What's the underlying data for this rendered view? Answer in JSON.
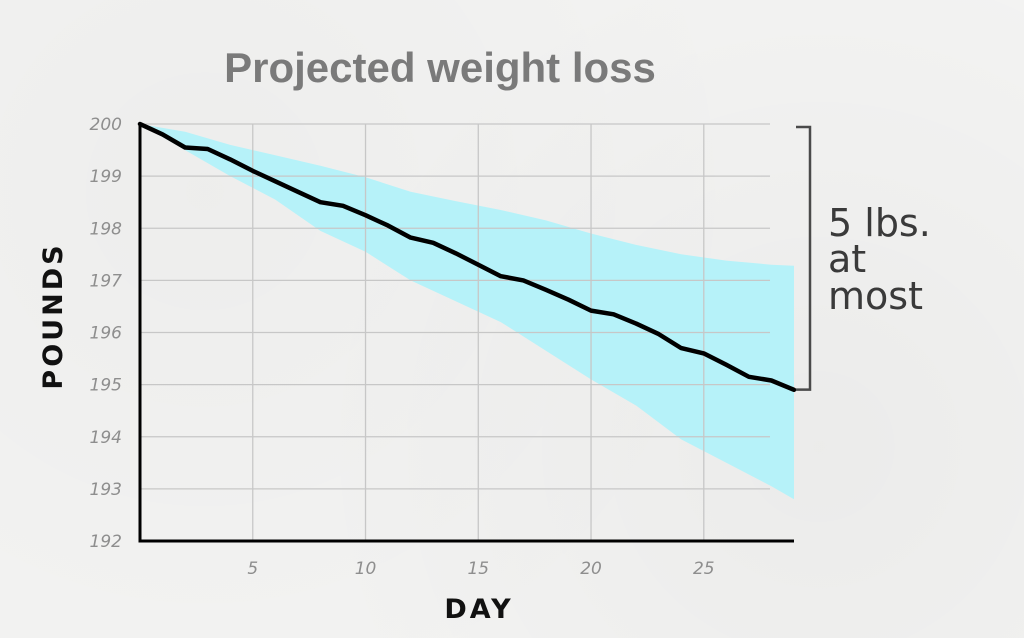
{
  "chart_data": {
    "type": "line",
    "title": "Projected weight loss",
    "xlabel": "DAY",
    "ylabel": "POUNDS",
    "xlim": [
      0,
      29
    ],
    "ylim": [
      192,
      200
    ],
    "x_ticks": [
      5,
      10,
      15,
      20,
      25
    ],
    "y_ticks": [
      192,
      193,
      194,
      195,
      196,
      197,
      198,
      199,
      200
    ],
    "grid": true,
    "series": [
      {
        "x": [
          0,
          1,
          2,
          3,
          4,
          5,
          6,
          7,
          8,
          9,
          10,
          11,
          12,
          13,
          14,
          15,
          16,
          17,
          18,
          19,
          20,
          21,
          22,
          23,
          24,
          25,
          26,
          27,
          28,
          29
        ],
        "values": [
          200,
          199.8,
          199.55,
          199.52,
          199.32,
          199.1,
          198.9,
          198.7,
          198.5,
          198.43,
          198.25,
          198.05,
          197.82,
          197.72,
          197.52,
          197.3,
          197.08,
          197.0,
          196.82,
          196.63,
          196.42,
          196.35,
          196.17,
          195.97,
          195.7,
          195.6,
          195.38,
          195.15,
          195.08,
          194.9
        ],
        "color": "#000000"
      }
    ],
    "band": {
      "x": [
        0,
        2,
        4,
        6,
        8,
        10,
        12,
        14,
        16,
        18,
        20,
        22,
        24,
        26,
        28,
        29
      ],
      "upper": [
        200,
        199.85,
        199.6,
        199.4,
        199.2,
        198.98,
        198.7,
        198.52,
        198.35,
        198.15,
        197.9,
        197.68,
        197.5,
        197.38,
        197.3,
        197.28
      ],
      "lower": [
        200,
        199.5,
        199.0,
        198.55,
        197.95,
        197.55,
        197.0,
        196.6,
        196.2,
        195.65,
        195.1,
        194.6,
        193.95,
        193.5,
        193.05,
        192.8
      ],
      "color": "#b6f2f9"
    },
    "annotation": {
      "lines": [
        "5 lbs.",
        "at",
        "most"
      ],
      "range": [
        195,
        200
      ],
      "color": "#4a4a4a"
    }
  }
}
